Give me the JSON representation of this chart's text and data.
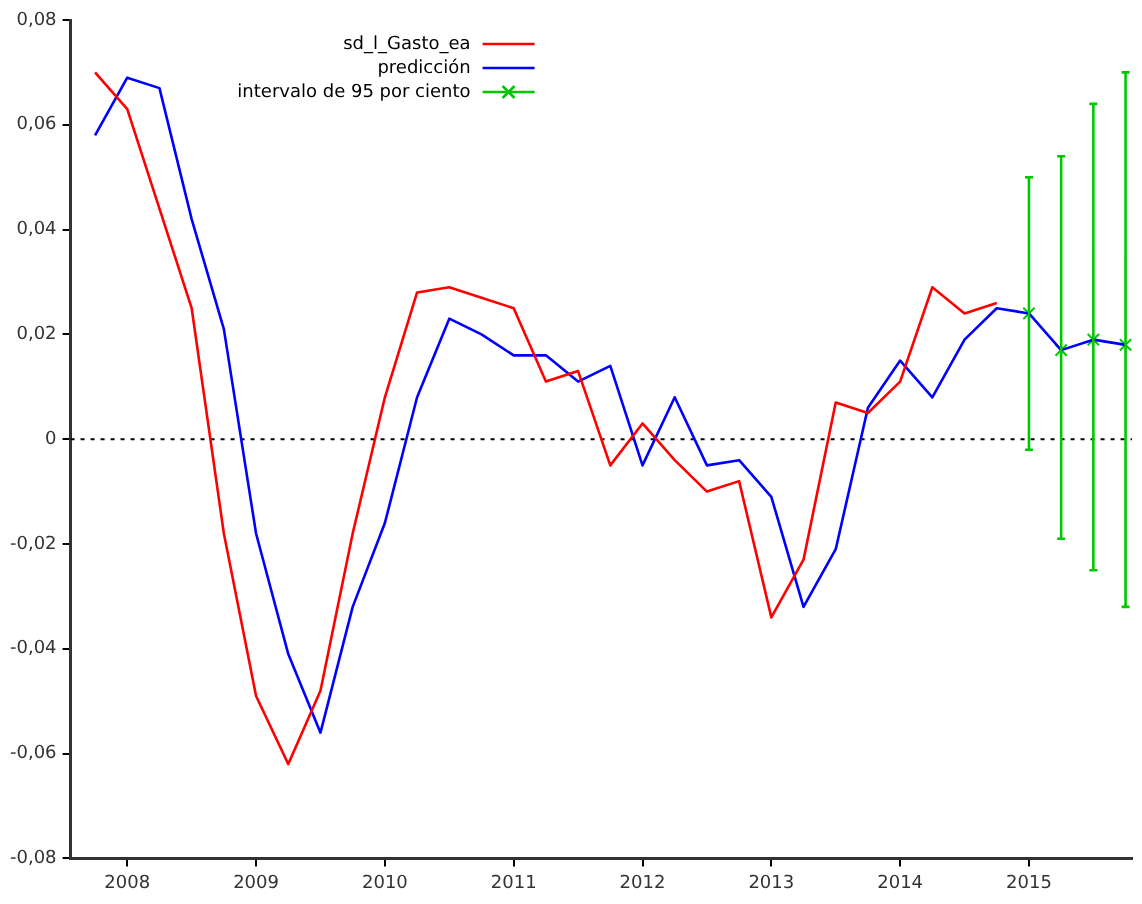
{
  "chart_data": {
    "type": "line",
    "x": [
      2007.75,
      2008,
      2008.25,
      2008.5,
      2008.75,
      2009,
      2009.25,
      2009.5,
      2009.75,
      2010,
      2010.25,
      2010.5,
      2010.75,
      2011,
      2011.25,
      2011.5,
      2011.75,
      2012,
      2012.25,
      2012.5,
      2012.75,
      2013,
      2013.25,
      2013.5,
      2013.75,
      2014,
      2014.25,
      2014.5,
      2014.75,
      2015,
      2015.25,
      2015.5,
      2015.75
    ],
    "series": [
      {
        "name": "sd_l_Gasto_ea",
        "color": "#ff0000",
        "values": [
          0.07,
          0.063,
          0.044,
          0.025,
          -0.018,
          -0.049,
          -0.062,
          -0.048,
          -0.018,
          0.008,
          0.028,
          0.029,
          0.027,
          0.025,
          0.011,
          0.013,
          -0.005,
          0.003,
          -0.004,
          -0.01,
          -0.008,
          -0.034,
          -0.023,
          0.007,
          0.005,
          0.011,
          0.029,
          0.024,
          0.026,
          null,
          null,
          null,
          null
        ]
      },
      {
        "name": "predicción",
        "color": "#0000ff",
        "values": [
          0.058,
          0.069,
          0.067,
          0.042,
          0.021,
          -0.018,
          -0.041,
          -0.056,
          -0.032,
          -0.016,
          0.008,
          0.023,
          0.02,
          0.016,
          0.016,
          0.011,
          0.014,
          -0.005,
          0.008,
          -0.005,
          -0.004,
          -0.011,
          -0.032,
          -0.021,
          0.006,
          0.015,
          0.008,
          0.019,
          0.025,
          0.024,
          0.017,
          0.019,
          0.018
        ]
      },
      {
        "name": "intervalo de 95 por ciento",
        "type": "scatter",
        "marker": "cross",
        "color": "#00c800",
        "x": [
          2015,
          2015.25,
          2015.5,
          2015.75
        ],
        "values": [
          0.024,
          0.017,
          0.019,
          0.018
        ],
        "errors": [
          [
            -0.002,
            0.05
          ],
          [
            -0.019,
            0.054
          ],
          [
            -0.025,
            0.064
          ],
          [
            -0.032,
            0.07
          ]
        ]
      }
    ],
    "xlim": [
      2007.56,
      2015.8
    ],
    "xticks": [
      2008,
      2009,
      2010,
      2011,
      2012,
      2013,
      2014,
      2015
    ],
    "ylim": [
      -0.08,
      0.08
    ],
    "yticks": [
      {
        "value": -0.08,
        "label": "-0,08"
      },
      {
        "value": -0.06,
        "label": "-0,06"
      },
      {
        "value": -0.04,
        "label": "-0,04"
      },
      {
        "value": -0.02,
        "label": "-0,02"
      },
      0,
      {
        "value": 0.02,
        "label": "0,02"
      },
      {
        "value": 0.04,
        "label": "0,04"
      },
      {
        "value": 0.06,
        "label": "0,06"
      },
      {
        "value": 0.08,
        "label": "0,08"
      }
    ],
    "ref_lines": [
      {
        "axis": "y",
        "value": 0,
        "color": "#000000",
        "line_style": "dotted"
      }
    ],
    "legend": "top",
    "grid": false,
    "marker": "none",
    "line_style": "solid"
  }
}
